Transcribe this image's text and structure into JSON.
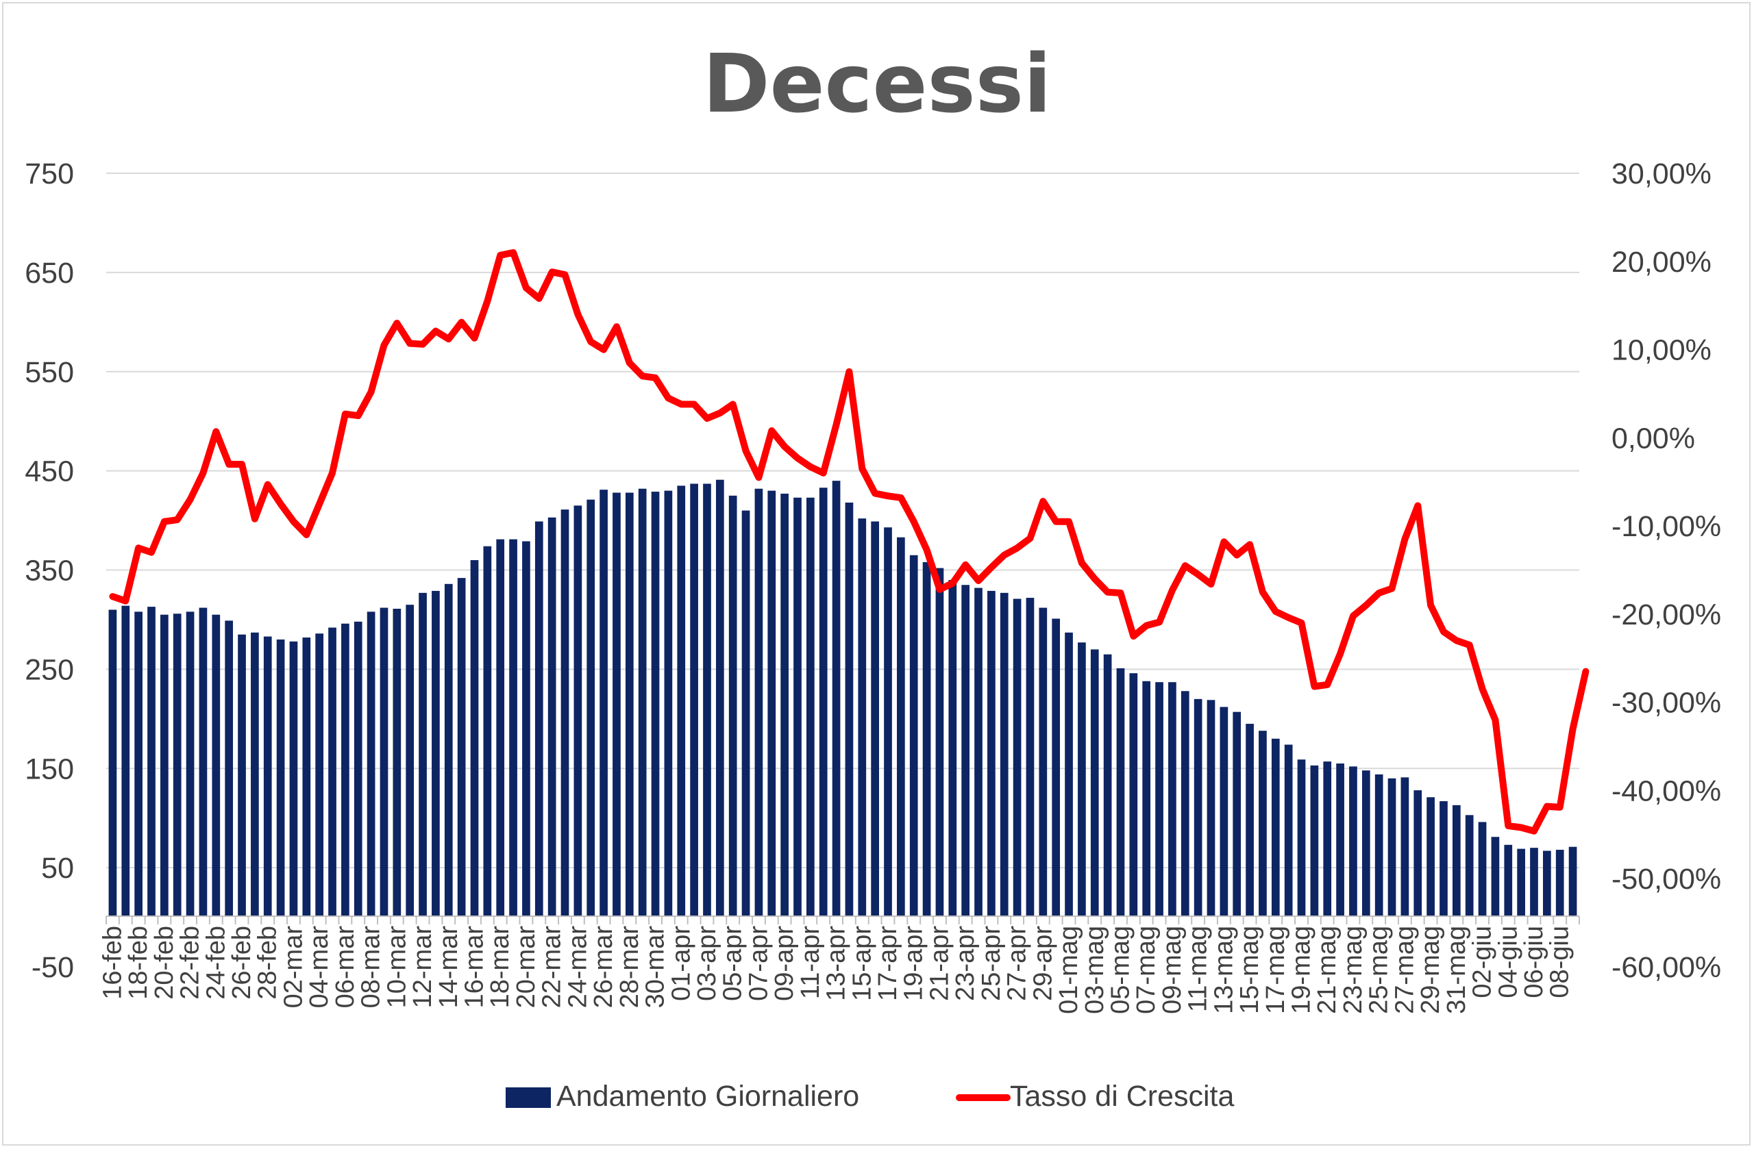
{
  "chart_data": {
    "type": "bar",
    "title": "Decessi",
    "xlabel": "",
    "ylabel": "",
    "grid": true,
    "legend_position": "bottom",
    "y_left": {
      "range": [
        -50,
        750
      ],
      "ticks": [
        "-50",
        "50",
        "150",
        "250",
        "350",
        "450",
        "550",
        "650",
        "750"
      ]
    },
    "y_right": {
      "range": [
        -0.6,
        0.3
      ],
      "ticks": [
        "-60,00%",
        "-50,00%",
        "-40,00%",
        "-30,00%",
        "-20,00%",
        "-10,00%",
        "0,00%",
        "10,00%",
        "20,00%",
        "30,00%"
      ]
    },
    "colors": {
      "bars": "#0e2563",
      "line": "#ff0000",
      "grid": "#d9d9d9",
      "axis_text": "#404040"
    },
    "x_tick_labels": [
      "16-feb",
      "18-feb",
      "20-feb",
      "22-feb",
      "24-feb",
      "26-feb",
      "28-feb",
      "02-mar",
      "04-mar",
      "06-mar",
      "08-mar",
      "10-mar",
      "12-mar",
      "14-mar",
      "16-mar",
      "18-mar",
      "20-mar",
      "22-mar",
      "24-mar",
      "26-mar",
      "28-mar",
      "30-mar",
      "01-apr",
      "03-apr",
      "05-apr",
      "07-apr",
      "09-apr",
      "11-apr",
      "13-apr",
      "15-apr",
      "17-apr",
      "19-apr",
      "21-apr",
      "23-apr",
      "25-apr",
      "27-apr",
      "29-apr",
      "01-mag",
      "03-mag",
      "05-mag",
      "07-mag",
      "09-mag",
      "11-mag",
      "13-mag",
      "15-mag",
      "17-mag",
      "19-mag",
      "21-mag",
      "23-mag",
      "25-mag",
      "27-mag",
      "29-mag",
      "31-mag",
      "02-giu",
      "04-giu",
      "06-giu",
      "08-giu"
    ],
    "series": [
      {
        "name": "Andamento Giornaliero",
        "type": "bar",
        "axis": "left",
        "values": [
          310,
          314,
          308,
          313,
          305,
          306,
          308,
          312,
          305,
          299,
          285,
          287,
          283,
          280,
          278,
          282,
          286,
          292,
          296,
          298,
          308,
          312,
          311,
          315,
          327,
          329,
          336,
          342,
          360,
          374,
          381,
          381,
          379,
          399,
          403,
          411,
          415,
          421,
          431,
          428,
          428,
          432,
          429,
          430,
          435,
          437,
          437,
          441,
          425,
          410,
          432,
          430,
          427,
          423,
          423,
          433,
          440,
          418,
          402,
          399,
          393,
          383,
          365,
          358,
          352,
          340,
          335,
          332,
          329,
          327,
          321,
          322,
          312,
          301,
          287,
          277,
          270,
          265,
          251,
          246,
          238,
          237,
          237,
          228,
          220,
          219,
          212,
          207,
          195,
          188,
          180,
          174,
          159,
          153,
          157,
          155,
          152,
          148,
          144,
          140,
          141,
          128,
          121,
          117,
          113,
          103,
          96,
          81,
          73,
          69,
          70,
          67,
          68,
          71
        ]
      },
      {
        "name": "Tasso di Crescita",
        "type": "line",
        "axis": "right",
        "values": [
          -0.18,
          -0.185,
          -0.125,
          -0.13,
          -0.095,
          -0.093,
          -0.07,
          -0.04,
          0.007,
          -0.03,
          -0.03,
          -0.092,
          -0.053,
          -0.075,
          -0.095,
          -0.11,
          -0.075,
          -0.04,
          0.027,
          0.025,
          0.052,
          0.105,
          0.13,
          0.107,
          0.106,
          0.121,
          0.112,
          0.131,
          0.113,
          0.155,
          0.207,
          0.21,
          0.17,
          0.158,
          0.188,
          0.185,
          0.14,
          0.109,
          0.1,
          0.126,
          0.085,
          0.07,
          0.068,
          0.045,
          0.038,
          0.038,
          0.022,
          0.028,
          0.038,
          -0.015,
          -0.045,
          0.008,
          -0.01,
          -0.023,
          -0.033,
          -0.04,
          0.015,
          0.075,
          -0.035,
          -0.063,
          -0.066,
          -0.068,
          -0.095,
          -0.127,
          -0.172,
          -0.165,
          -0.144,
          -0.162,
          -0.147,
          -0.133,
          -0.125,
          -0.114,
          -0.072,
          -0.095,
          -0.095,
          -0.142,
          -0.16,
          -0.175,
          -0.176,
          -0.225,
          -0.213,
          -0.209,
          -0.173,
          -0.145,
          -0.155,
          -0.166,
          -0.118,
          -0.133,
          -0.121,
          -0.175,
          -0.197,
          -0.204,
          -0.21,
          -0.282,
          -0.28,
          -0.245,
          -0.202,
          -0.19,
          -0.176,
          -0.171,
          -0.115,
          -0.077,
          -0.19,
          -0.22,
          -0.23,
          -0.235,
          -0.285,
          -0.32,
          -0.44,
          -0.442,
          -0.446,
          -0.418,
          -0.419,
          -0.33,
          -0.265
        ]
      }
    ]
  }
}
